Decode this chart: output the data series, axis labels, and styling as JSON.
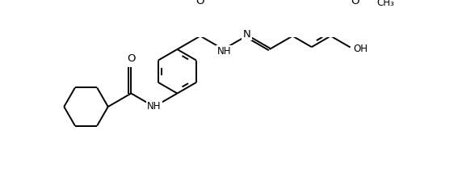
{
  "background_color": "#ffffff",
  "line_color": "#000000",
  "line_width": 1.4,
  "font_size": 8.5,
  "fig_width": 5.62,
  "fig_height": 2.14,
  "dpi": 100,
  "xlim": [
    0,
    10.5
  ],
  "ylim": [
    0.2,
    4.0
  ]
}
